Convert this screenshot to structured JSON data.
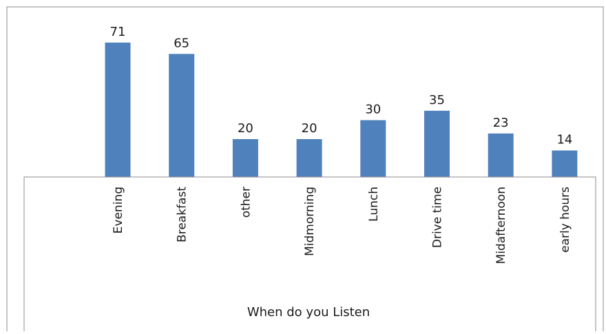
{
  "chart_data": {
    "type": "bar",
    "title": "",
    "xlabel": "When do you Listen",
    "ylabel": "",
    "categories": [
      "Evening",
      "Breakfast",
      "other",
      "Midmorning",
      "Lunch",
      "Drive time",
      "Midafternoon",
      "early hours"
    ],
    "values": [
      71,
      65,
      20,
      20,
      30,
      35,
      23,
      14
    ],
    "ylim": [
      0,
      71
    ],
    "grid": false,
    "legend": "none",
    "data_labels": true,
    "bar_color": "#4F81BD"
  }
}
